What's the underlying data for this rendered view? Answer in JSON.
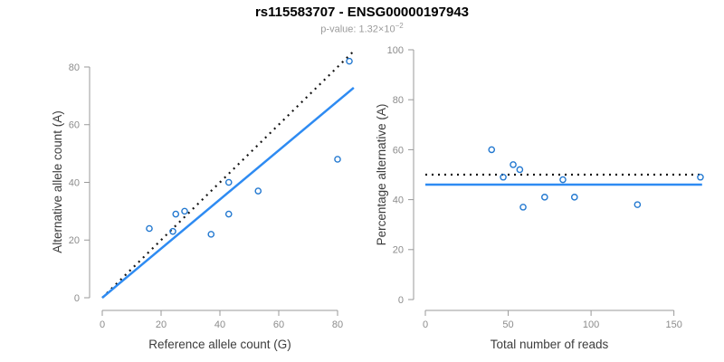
{
  "header": {
    "title": "rs115583707 - ENSG00000197943",
    "subtitle_prefix": "p-value: 1.32×10",
    "subtitle_exponent": "−2"
  },
  "colors": {
    "title": "#000000",
    "subtitle": "#9b9b9b",
    "axis_line": "#999999",
    "tick_text": "#8c8c8c",
    "axis_title": "#3c3c3c",
    "point_blue": "#2278d0",
    "line_blue": "#2e8bf2",
    "dotted_black": "#141414"
  },
  "chart_data": [
    {
      "type": "scatter",
      "name": "allele-count-scatter",
      "xlabel": "Reference allele count (G)",
      "ylabel": "Alternative allele count (A)",
      "xlim": [
        0,
        85
      ],
      "ylim": [
        0,
        85
      ],
      "xticks": [
        0,
        20,
        40,
        60,
        80
      ],
      "yticks": [
        0,
        20,
        40,
        60,
        80
      ],
      "grid": false,
      "legend": "none",
      "points": [
        [
          16,
          24
        ],
        [
          24,
          23
        ],
        [
          25,
          29
        ],
        [
          28,
          30
        ],
        [
          37,
          22
        ],
        [
          43,
          29
        ],
        [
          43,
          40
        ],
        [
          53,
          37
        ],
        [
          80,
          48
        ],
        [
          84,
          82
        ]
      ],
      "lines": [
        {
          "name": "identity-line",
          "style": "dotted",
          "color": "black",
          "from": [
            0,
            0
          ],
          "to": [
            85.5,
            85.5
          ]
        },
        {
          "name": "fit-line",
          "style": "solid",
          "color": "blue",
          "from": [
            0,
            0
          ],
          "to": [
            85.5,
            72.8
          ]
        }
      ]
    },
    {
      "type": "scatter",
      "name": "percentage-reads-scatter",
      "xlabel": "Total number of reads",
      "ylabel": "Percentage alternative (A)",
      "xlim": [
        0,
        170
      ],
      "ylim": [
        0,
        100
      ],
      "xticks": [
        0,
        50,
        100,
        150
      ],
      "yticks": [
        0,
        20,
        40,
        60,
        80,
        100
      ],
      "grid": false,
      "legend": "none",
      "points": [
        [
          40,
          60
        ],
        [
          47,
          49
        ],
        [
          53,
          54
        ],
        [
          57,
          52
        ],
        [
          59,
          37
        ],
        [
          72,
          41
        ],
        [
          83,
          48
        ],
        [
          90,
          41
        ],
        [
          128,
          38
        ],
        [
          166,
          49
        ]
      ],
      "lines": [
        {
          "name": "expected-percentage-line",
          "style": "dotted",
          "color": "black",
          "from": [
            0,
            50
          ],
          "to": [
            167,
            50
          ]
        },
        {
          "name": "fitted-percentage-line",
          "style": "solid",
          "color": "blue",
          "from": [
            0,
            46
          ],
          "to": [
            167,
            46
          ]
        }
      ]
    }
  ]
}
